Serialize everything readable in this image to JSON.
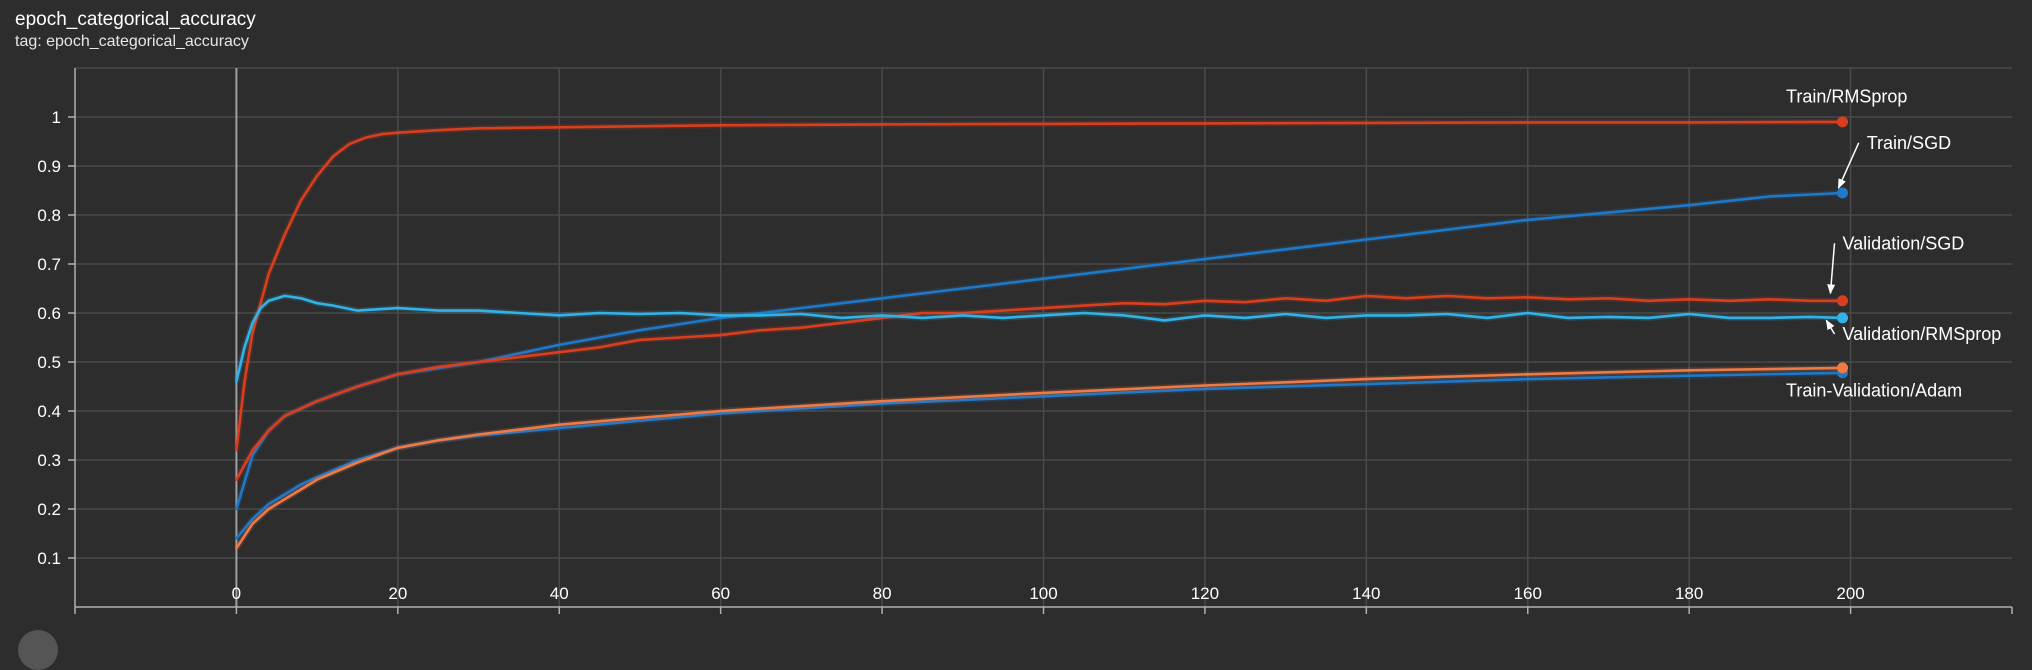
{
  "card": {
    "title": "epoch_categorical_accuracy",
    "tag": "tag: epoch_categorical_accuracy"
  },
  "colors": {
    "background": "#2d2d2d",
    "grid": "#4a4a4a",
    "axis": "#b0b0b0",
    "red": "#d93f1e",
    "orange": "#f07a45",
    "blue": "#1f78c8",
    "cyan": "#33b2e6"
  },
  "chart_data": {
    "type": "line",
    "title": "epoch_categorical_accuracy",
    "xlim": [
      -20,
      220
    ],
    "ylim": [
      0,
      1.1
    ],
    "x_ticks": [
      0,
      20,
      40,
      60,
      80,
      100,
      120,
      140,
      160,
      180,
      200
    ],
    "y_ticks": [
      0.1,
      0.2,
      0.3,
      0.4,
      0.5,
      0.6,
      0.7,
      0.8,
      0.9,
      1
    ],
    "grid": true,
    "series": [
      {
        "id": "train-rmsprop",
        "color": "#d93f1e",
        "x": [
          0,
          1,
          2,
          4,
          6,
          8,
          10,
          12,
          14,
          16,
          18,
          20,
          25,
          30,
          40,
          60,
          80,
          100,
          120,
          140,
          160,
          180,
          199
        ],
        "y": [
          0.32,
          0.46,
          0.56,
          0.68,
          0.76,
          0.83,
          0.88,
          0.92,
          0.945,
          0.958,
          0.965,
          0.968,
          0.973,
          0.977,
          0.979,
          0.983,
          0.985,
          0.986,
          0.987,
          0.988,
          0.989,
          0.989,
          0.99
        ]
      },
      {
        "id": "train-sgd",
        "color": "#1f78c8",
        "x": [
          0,
          2,
          4,
          6,
          10,
          15,
          20,
          30,
          40,
          50,
          60,
          70,
          80,
          90,
          100,
          110,
          120,
          130,
          140,
          150,
          160,
          170,
          180,
          190,
          199
        ],
        "y": [
          0.2,
          0.31,
          0.36,
          0.39,
          0.42,
          0.45,
          0.475,
          0.5,
          0.535,
          0.565,
          0.59,
          0.61,
          0.63,
          0.65,
          0.67,
          0.69,
          0.71,
          0.73,
          0.75,
          0.77,
          0.79,
          0.805,
          0.82,
          0.838,
          0.845
        ]
      },
      {
        "id": "validation-sgd",
        "color": "#d93f1e",
        "x": [
          0,
          2,
          4,
          6,
          10,
          15,
          20,
          25,
          30,
          35,
          40,
          45,
          50,
          55,
          60,
          65,
          70,
          75,
          80,
          85,
          90,
          95,
          100,
          105,
          110,
          115,
          120,
          125,
          130,
          135,
          140,
          145,
          150,
          155,
          160,
          165,
          170,
          175,
          180,
          185,
          190,
          195,
          199
        ],
        "y": [
          0.26,
          0.32,
          0.36,
          0.39,
          0.42,
          0.45,
          0.475,
          0.49,
          0.5,
          0.51,
          0.52,
          0.53,
          0.545,
          0.55,
          0.555,
          0.565,
          0.57,
          0.58,
          0.59,
          0.6,
          0.6,
          0.605,
          0.61,
          0.615,
          0.62,
          0.618,
          0.625,
          0.622,
          0.63,
          0.625,
          0.635,
          0.63,
          0.635,
          0.63,
          0.632,
          0.628,
          0.63,
          0.625,
          0.628,
          0.625,
          0.628,
          0.625,
          0.625
        ]
      },
      {
        "id": "validation-rmsprop",
        "color": "#33b2e6",
        "x": [
          0,
          1,
          2,
          3,
          4,
          6,
          8,
          10,
          12,
          15,
          18,
          20,
          25,
          30,
          35,
          40,
          45,
          50,
          55,
          60,
          65,
          70,
          75,
          80,
          85,
          90,
          95,
          100,
          105,
          110,
          115,
          120,
          125,
          130,
          135,
          140,
          145,
          150,
          155,
          160,
          165,
          170,
          175,
          180,
          185,
          190,
          195,
          199
        ],
        "y": [
          0.46,
          0.53,
          0.58,
          0.61,
          0.625,
          0.635,
          0.63,
          0.62,
          0.615,
          0.605,
          0.608,
          0.61,
          0.605,
          0.605,
          0.6,
          0.595,
          0.6,
          0.598,
          0.6,
          0.595,
          0.595,
          0.598,
          0.59,
          0.595,
          0.59,
          0.595,
          0.59,
          0.595,
          0.6,
          0.595,
          0.585,
          0.595,
          0.59,
          0.598,
          0.59,
          0.595,
          0.595,
          0.598,
          0.59,
          0.6,
          0.59,
          0.592,
          0.59,
          0.598,
          0.59,
          0.59,
          0.592,
          0.59
        ]
      },
      {
        "id": "train-adam",
        "color": "#1f78c8",
        "x": [
          0,
          2,
          4,
          6,
          8,
          10,
          15,
          20,
          25,
          30,
          40,
          60,
          80,
          100,
          120,
          140,
          160,
          180,
          199
        ],
        "y": [
          0.14,
          0.18,
          0.21,
          0.23,
          0.25,
          0.265,
          0.3,
          0.325,
          0.34,
          0.35,
          0.365,
          0.395,
          0.415,
          0.43,
          0.445,
          0.455,
          0.465,
          0.472,
          0.478
        ]
      },
      {
        "id": "validation-adam",
        "color": "#f07a45",
        "x": [
          0,
          2,
          4,
          6,
          8,
          10,
          15,
          20,
          25,
          30,
          40,
          60,
          80,
          100,
          120,
          140,
          160,
          180,
          199
        ],
        "y": [
          0.12,
          0.17,
          0.2,
          0.22,
          0.24,
          0.26,
          0.295,
          0.325,
          0.34,
          0.352,
          0.372,
          0.4,
          0.42,
          0.437,
          0.452,
          0.465,
          0.475,
          0.483,
          0.488
        ]
      }
    ],
    "annotations": [
      {
        "text": "Train/RMSprop",
        "x": 192,
        "y": 1.03
      },
      {
        "text": "Train/SGD",
        "x": 202,
        "y": 0.935,
        "arrow_to": [
          198.5,
          0.855
        ]
      },
      {
        "text": "Validation/SGD",
        "x": 199,
        "y": 0.73,
        "arrow_to": [
          197.5,
          0.64
        ]
      },
      {
        "text": "Validation/RMSprop",
        "x": 199,
        "y": 0.545,
        "arrow_to": [
          197,
          0.585
        ]
      },
      {
        "text": "Train-Validation/Adam",
        "x": 192,
        "y": 0.43
      }
    ]
  }
}
